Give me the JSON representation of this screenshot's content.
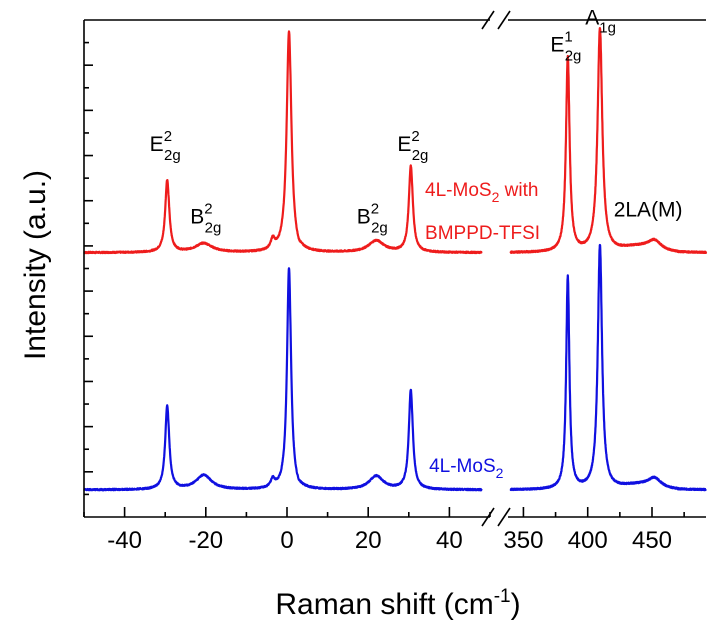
{
  "chart_data": {
    "type": "line",
    "xlabel_main": "Raman shift (cm",
    "xlabel_sup": "-1",
    "xlabel_close": ")",
    "ylabel": "Intensity (a.u.)",
    "x_axis_break": true,
    "segments": [
      {
        "xlim": [
          -50,
          50
        ],
        "ticks": [
          -40,
          -20,
          0,
          20,
          40
        ]
      },
      {
        "xlim": [
          338,
          492
        ],
        "ticks": [
          350,
          400,
          450
        ]
      }
    ],
    "ylim": [
      0,
      11
    ],
    "y_ticks_labeled": false,
    "grid": false,
    "colors": {
      "red": "#ee1c1c",
      "blue": "#1010e0",
      "axis": "#000000"
    },
    "series": [
      {
        "name": "4L-MoS2 with BMPPD-TFSI",
        "color": "#ee1c1c",
        "peaks_low": [
          {
            "x": -29.5,
            "height": 1.6,
            "width": 0.6
          },
          {
            "x": -20.5,
            "height": 0.2,
            "width": 2.5
          },
          {
            "x": -3.5,
            "height": 0.22,
            "width": 0.6
          },
          {
            "x": 0.5,
            "height": 4.9,
            "width": 0.7
          },
          {
            "x": 22.0,
            "height": 0.26,
            "width": 2.3
          },
          {
            "x": 30.5,
            "height": 1.9,
            "width": 0.6
          }
        ],
        "dip_low": {
          "x": 2.8,
          "depth": 0.08,
          "width": 0.6
        },
        "peaks_high": [
          {
            "x": 384.5,
            "height": 4.3,
            "width": 1.7
          },
          {
            "x": 409.5,
            "height": 4.95,
            "width": 2.2
          },
          {
            "x": 452,
            "height": 0.2,
            "width": 6
          }
        ],
        "baseline": 5.85,
        "shoulder_high": 0.12
      },
      {
        "name": "4L-MoS2",
        "color": "#1010e0",
        "peaks_low": [
          {
            "x": -29.5,
            "height": 1.85,
            "width": 0.6
          },
          {
            "x": -20.5,
            "height": 0.32,
            "width": 2.3
          },
          {
            "x": -3.5,
            "height": 0.18,
            "width": 0.6
          },
          {
            "x": 0.5,
            "height": 4.9,
            "width": 0.6
          },
          {
            "x": 22.0,
            "height": 0.3,
            "width": 2.1
          },
          {
            "x": 30.5,
            "height": 2.2,
            "width": 0.6
          }
        ],
        "dip_low": {
          "x": 2.8,
          "depth": 0.06,
          "width": 0.6
        },
        "peaks_high": [
          {
            "x": 384.5,
            "height": 4.7,
            "width": 1.5
          },
          {
            "x": 409.5,
            "height": 5.4,
            "width": 2.0
          },
          {
            "x": 452,
            "height": 0.2,
            "width": 6
          }
        ],
        "baseline": 0.6,
        "shoulder_high": 0.1
      }
    ],
    "peak_labels": [
      {
        "name": "peak-label-e2g2-left",
        "main": "E",
        "sup": "2",
        "sub": "2g",
        "x": -30,
        "y": 8.1,
        "segment": 0,
        "color": "#000000"
      },
      {
        "name": "peak-label-b2g2-left",
        "main": "B",
        "sup": "2",
        "sub": "2g",
        "x": -20,
        "y": 6.5,
        "segment": 0,
        "color": "#000000"
      },
      {
        "name": "peak-label-b2g2-right",
        "main": "B",
        "sup": "2",
        "sub": "2g",
        "x": 21,
        "y": 6.5,
        "segment": 0,
        "color": "#000000"
      },
      {
        "name": "peak-label-e2g2-right",
        "main": "E",
        "sup": "2",
        "sub": "2g",
        "x": 31,
        "y": 8.1,
        "segment": 0,
        "color": "#000000"
      },
      {
        "name": "peak-label-e2g1",
        "main": "E",
        "sup": "1",
        "sub": "2g",
        "x": 383,
        "y": 10.3,
        "segment": 1,
        "color": "#000000"
      },
      {
        "name": "peak-label-a1g",
        "main": "A",
        "sup": "",
        "sub": "1g",
        "x": 410,
        "y": 10.9,
        "segment": 1,
        "color": "#000000"
      },
      {
        "name": "peak-label-2la",
        "main": "2LA(M)",
        "sup": "",
        "sub": "",
        "x": 447,
        "y": 6.65,
        "segment": 1,
        "color": "#000000"
      }
    ],
    "sample_labels": [
      {
        "name": "legend-label-treated-line1",
        "parts": [
          "4L-MoS",
          "2",
          " with"
        ],
        "x": 34,
        "y": 7.1,
        "segment": 0,
        "color": "#ee1c1c"
      },
      {
        "name": "legend-label-treated-line2",
        "parts": [
          "BMPPD-TFSI",
          "",
          ""
        ],
        "x": 34,
        "y": 6.15,
        "segment": 0,
        "color": "#ee1c1c"
      },
      {
        "name": "legend-label-pristine",
        "parts": [
          "4L-MoS",
          "2",
          ""
        ],
        "x": 35,
        "y": 1.0,
        "segment": 0,
        "color": "#1010e0"
      }
    ]
  }
}
